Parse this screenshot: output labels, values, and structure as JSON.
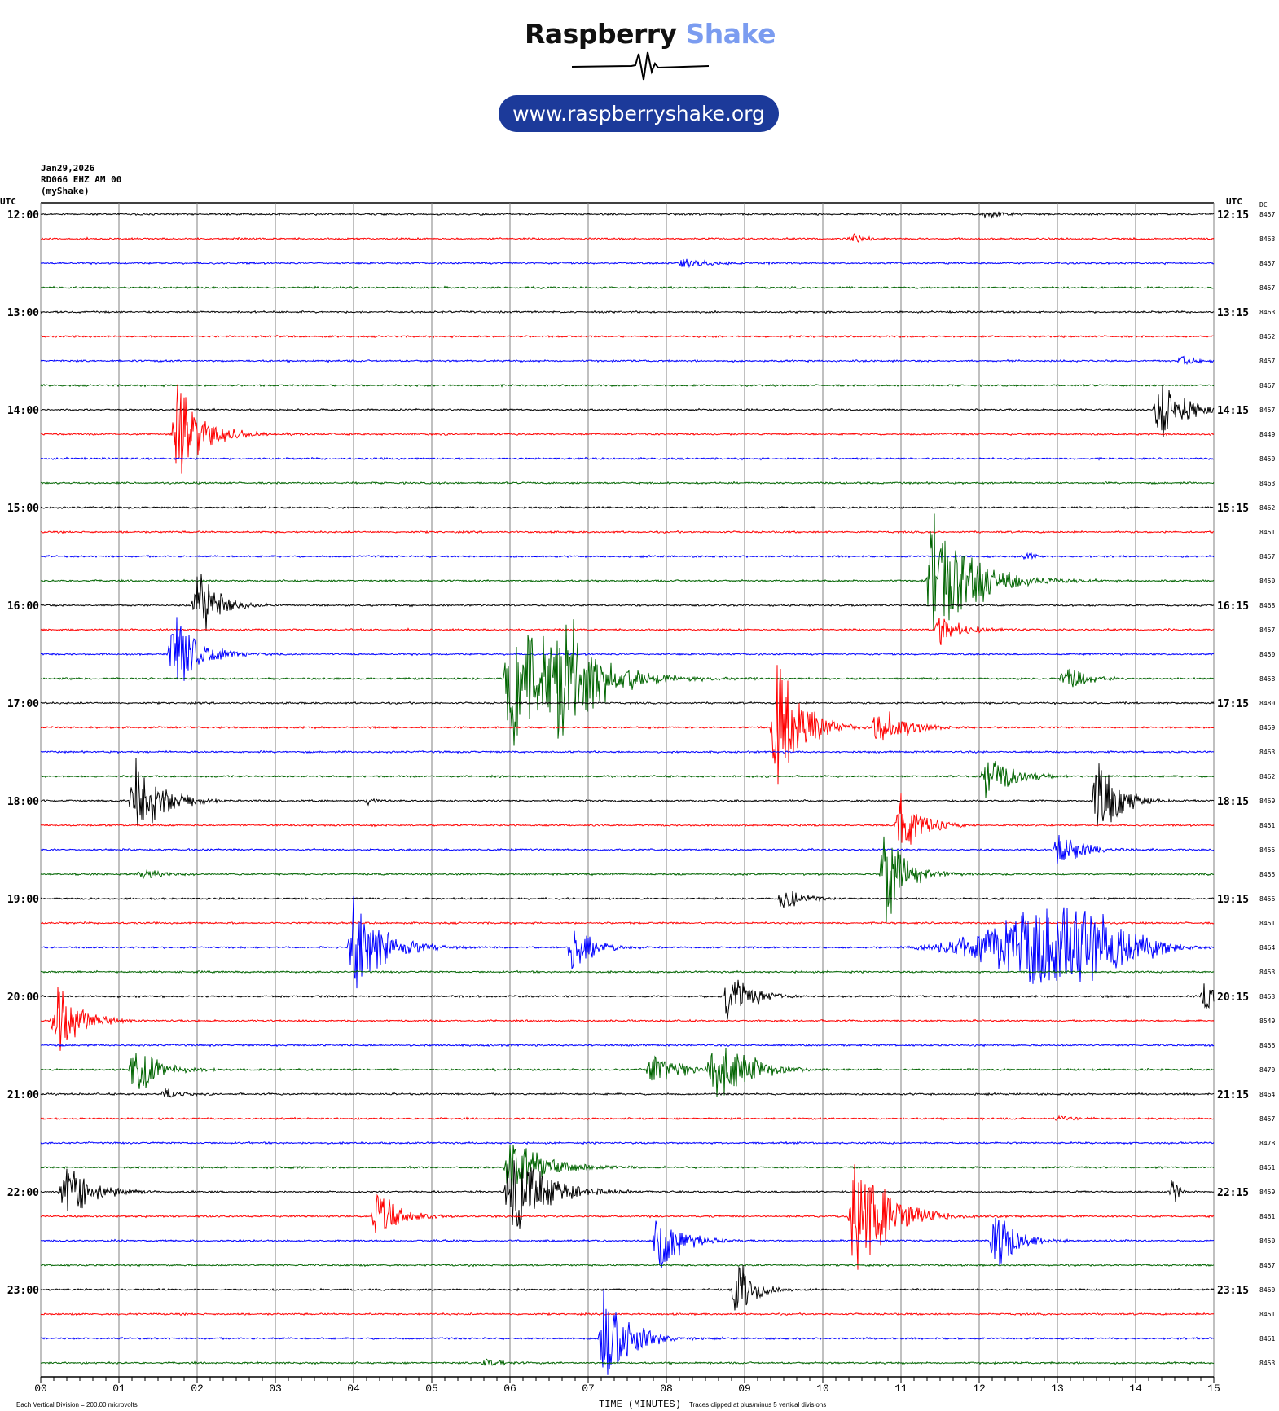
{
  "logo": {
    "brand_part1": "Raspberry",
    "brand_part2": "Shake",
    "url": "www.raspberryshake.org"
  },
  "header": {
    "date": "Jan29,2026",
    "station": "RD066 EHZ AM 00",
    "owner": "(myShake)"
  },
  "colors": {
    "trace_cycle": [
      "#000000",
      "#ff0000",
      "#0000ff",
      "#006400"
    ],
    "grid": "#808080",
    "brand_light": "#7b9cf0",
    "brand_dark": "#1c3a9a"
  },
  "chart_data": {
    "type": "line",
    "xlabel": "TIME (MINUTES)",
    "xlim": [
      0,
      15
    ],
    "x_ticks": [
      "00",
      "01",
      "02",
      "03",
      "04",
      "05",
      "06",
      "07",
      "08",
      "09",
      "10",
      "11",
      "12",
      "13",
      "14",
      "15"
    ],
    "left_axis_title": "UTC",
    "right_axis_title": "UTC",
    "dc_title": "DC",
    "left_hour_labels": [
      "12:00",
      "13:00",
      "14:00",
      "15:00",
      "16:00",
      "17:00",
      "18:00",
      "19:00",
      "20:00",
      "21:00",
      "22:00",
      "23:00"
    ],
    "right_hour_labels": [
      "12:15",
      "13:15",
      "14:15",
      "15:15",
      "16:15",
      "17:15",
      "18:15",
      "19:15",
      "20:15",
      "21:15",
      "22:15",
      "23:15"
    ],
    "row_minutes": 15,
    "rows": 48,
    "dc_offsets": [
      "8457",
      "8463",
      "8457",
      "8457",
      "8463",
      "8452",
      "8457",
      "8467",
      "8457",
      "8449",
      "8450",
      "8463",
      "8462",
      "8451",
      "8457",
      "8450",
      "8468",
      "8457",
      "8450",
      "8458",
      "8480",
      "8459",
      "8463",
      "8462",
      "8469",
      "8451",
      "8455",
      "8455",
      "8456",
      "8451",
      "8464",
      "8453",
      "8453",
      "8549",
      "8456",
      "8470",
      "8464",
      "8457",
      "8478",
      "8451",
      "8459",
      "8461",
      "8450",
      "8457",
      "8460",
      "8451",
      "8461",
      "8453"
    ],
    "scale_note": "Each Vertical Division =  200.00 microvolts",
    "clip_note": "Traces clipped at plus/minus 5 vertical divisions",
    "events_divisions": [
      {
        "row": 0,
        "minute": 12.1,
        "amp": 0.3,
        "dur": 0.4
      },
      {
        "row": 1,
        "minute": 10.4,
        "amp": 0.3,
        "dur": 0.3
      },
      {
        "row": 2,
        "minute": 8.2,
        "amp": 0.25,
        "dur": 1.2
      },
      {
        "row": 6,
        "minute": 14.6,
        "amp": 0.3,
        "dur": 0.4
      },
      {
        "row": 8,
        "minute": 14.3,
        "amp": 2.2,
        "dur": 0.6
      },
      {
        "row": 9,
        "minute": 1.75,
        "amp": 3.3,
        "dur": 0.6
      },
      {
        "row": 14,
        "minute": 12.6,
        "amp": 0.3,
        "dur": 0.2
      },
      {
        "row": 15,
        "minute": 11.4,
        "amp": 5,
        "dur": 0.9
      },
      {
        "row": 16,
        "minute": 2.0,
        "amp": 2.2,
        "dur": 0.5
      },
      {
        "row": 17,
        "minute": 11.5,
        "amp": 0.9,
        "dur": 0.6
      },
      {
        "row": 18,
        "minute": 1.7,
        "amp": 2.5,
        "dur": 0.6
      },
      {
        "row": 19,
        "minute": 6.0,
        "amp": 5,
        "dur": 1.2
      },
      {
        "row": 19,
        "minute": 6.6,
        "amp": 4.5,
        "dur": 0.8
      },
      {
        "row": 19,
        "minute": 13.1,
        "amp": 0.8,
        "dur": 0.5
      },
      {
        "row": 21,
        "minute": 9.4,
        "amp": 4.2,
        "dur": 0.6
      },
      {
        "row": 21,
        "minute": 10.7,
        "amp": 1.5,
        "dur": 0.6
      },
      {
        "row": 23,
        "minute": 12.1,
        "amp": 1.5,
        "dur": 0.6
      },
      {
        "row": 24,
        "minute": 1.2,
        "amp": 3,
        "dur": 0.6
      },
      {
        "row": 24,
        "minute": 13.5,
        "amp": 3,
        "dur": 0.5
      },
      {
        "row": 24,
        "minute": 4.2,
        "amp": 0.3,
        "dur": 0.2
      },
      {
        "row": 25,
        "minute": 11.0,
        "amp": 2,
        "dur": 0.5
      },
      {
        "row": 26,
        "minute": 13.0,
        "amp": 1.2,
        "dur": 0.6
      },
      {
        "row": 27,
        "minute": 10.8,
        "amp": 3,
        "dur": 0.5
      },
      {
        "row": 27,
        "minute": 1.3,
        "amp": 0.4,
        "dur": 0.4
      },
      {
        "row": 28,
        "minute": 9.5,
        "amp": 1,
        "dur": 0.4
      },
      {
        "row": 30,
        "minute": 4.0,
        "amp": 3,
        "dur": 0.7
      },
      {
        "row": 30,
        "minute": 6.8,
        "amp": 1.5,
        "dur": 0.5
      },
      {
        "row": 30,
        "minute": 13.0,
        "amp": 2.5,
        "dur": 2.0
      },
      {
        "row": 32,
        "minute": 8.8,
        "amp": 2,
        "dur": 0.5
      },
      {
        "row": 32,
        "minute": 14.9,
        "amp": 1,
        "dur": 0.3
      },
      {
        "row": 33,
        "minute": 0.2,
        "amp": 2,
        "dur": 0.6
      },
      {
        "row": 35,
        "minute": 1.2,
        "amp": 2,
        "dur": 0.5
      },
      {
        "row": 35,
        "minute": 7.8,
        "amp": 1,
        "dur": 0.8
      },
      {
        "row": 35,
        "minute": 8.6,
        "amp": 2.8,
        "dur": 0.7
      },
      {
        "row": 36,
        "minute": 1.6,
        "amp": 0.4,
        "dur": 0.3
      },
      {
        "row": 37,
        "minute": 13.0,
        "amp": 0.2,
        "dur": 0.6
      },
      {
        "row": 39,
        "minute": 6.0,
        "amp": 2,
        "dur": 0.8
      },
      {
        "row": 40,
        "minute": 0.3,
        "amp": 2,
        "dur": 0.6
      },
      {
        "row": 40,
        "minute": 6.0,
        "amp": 3,
        "dur": 0.8
      },
      {
        "row": 40,
        "minute": 14.5,
        "amp": 1.2,
        "dur": 0.1
      },
      {
        "row": 41,
        "minute": 4.3,
        "amp": 1.8,
        "dur": 0.5
      },
      {
        "row": 41,
        "minute": 10.4,
        "amp": 4,
        "dur": 0.8
      },
      {
        "row": 42,
        "minute": 7.9,
        "amp": 2.5,
        "dur": 0.5
      },
      {
        "row": 42,
        "minute": 12.2,
        "amp": 2,
        "dur": 0.5
      },
      {
        "row": 44,
        "minute": 8.9,
        "amp": 2,
        "dur": 0.4
      },
      {
        "row": 46,
        "minute": 7.2,
        "amp": 3,
        "dur": 0.6
      },
      {
        "row": 47,
        "minute": 5.7,
        "amp": 0.3,
        "dur": 0.4
      }
    ]
  }
}
